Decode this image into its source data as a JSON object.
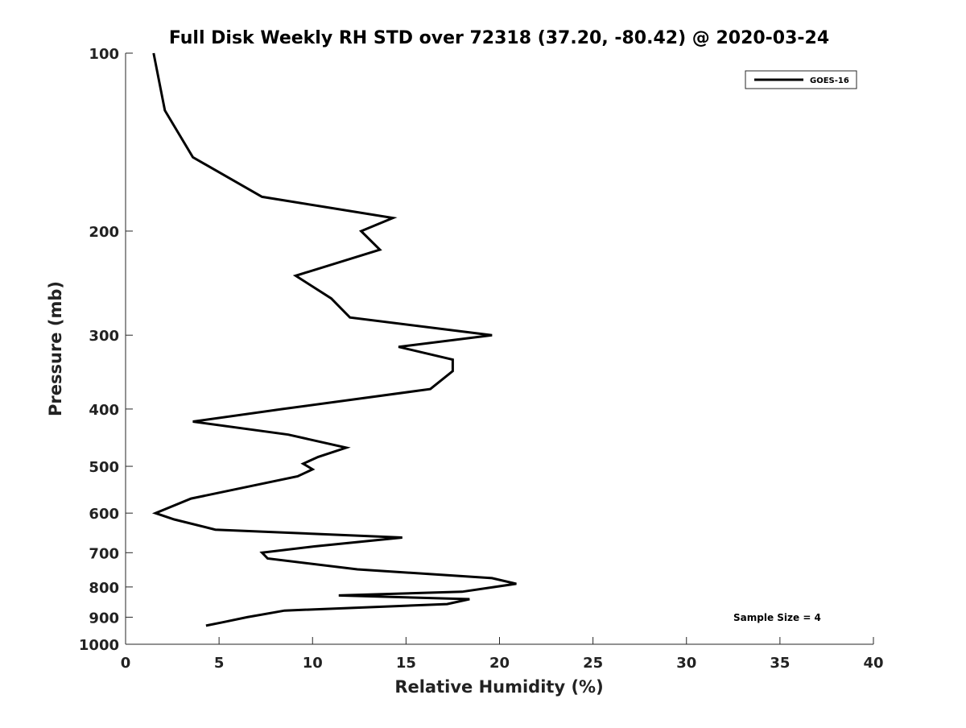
{
  "chart_data": {
    "type": "line",
    "title": "Full Disk Weekly RH STD over 72318 (37.20, -80.42) @ 2020-03-24",
    "xlabel": "Relative Humidity (%)",
    "ylabel": "Pressure (mb)",
    "xlim": [
      0,
      40
    ],
    "ylim": [
      100,
      1000
    ],
    "y_scale": "log",
    "y_reversed": true,
    "x_ticks": [
      "0",
      "5",
      "10",
      "15",
      "20",
      "25",
      "30",
      "35",
      "40"
    ],
    "y_ticks": [
      "100",
      "200",
      "300",
      "400",
      "500",
      "600",
      "700",
      "800",
      "900",
      "1000"
    ],
    "grid": false,
    "legend_position": "top-right",
    "series": [
      {
        "name": "GOES-16",
        "color": "#000000",
        "points": [
          [
            1.5,
            100
          ],
          [
            2.1,
            125
          ],
          [
            3.6,
            150
          ],
          [
            7.3,
            175
          ],
          [
            14.3,
            190
          ],
          [
            12.6,
            200
          ],
          [
            13.6,
            215
          ],
          [
            9.1,
            238
          ],
          [
            11.0,
            260
          ],
          [
            12.0,
            280
          ],
          [
            19.6,
            300
          ],
          [
            14.6,
            314
          ],
          [
            17.5,
            330
          ],
          [
            17.5,
            345
          ],
          [
            16.3,
            370
          ],
          [
            8.4,
            400
          ],
          [
            3.6,
            420
          ],
          [
            8.7,
            442
          ],
          [
            11.8,
            465
          ],
          [
            10.3,
            482
          ],
          [
            9.5,
            495
          ],
          [
            10.0,
            506
          ],
          [
            9.2,
            520
          ],
          [
            3.5,
            567
          ],
          [
            1.6,
            600
          ],
          [
            2.6,
            615
          ],
          [
            4.8,
            640
          ],
          [
            14.8,
            660
          ],
          [
            10.1,
            683
          ],
          [
            7.3,
            700
          ],
          [
            7.6,
            716
          ],
          [
            12.4,
            747
          ],
          [
            19.6,
            773
          ],
          [
            20.9,
            790
          ],
          [
            18.0,
            815
          ],
          [
            11.4,
            827
          ],
          [
            18.4,
            839
          ],
          [
            17.2,
            855
          ],
          [
            8.5,
            877
          ],
          [
            6.5,
            900
          ],
          [
            5.2,
            918
          ],
          [
            4.3,
            930
          ]
        ]
      }
    ],
    "annotations": [
      "Sample Size = 4"
    ]
  }
}
